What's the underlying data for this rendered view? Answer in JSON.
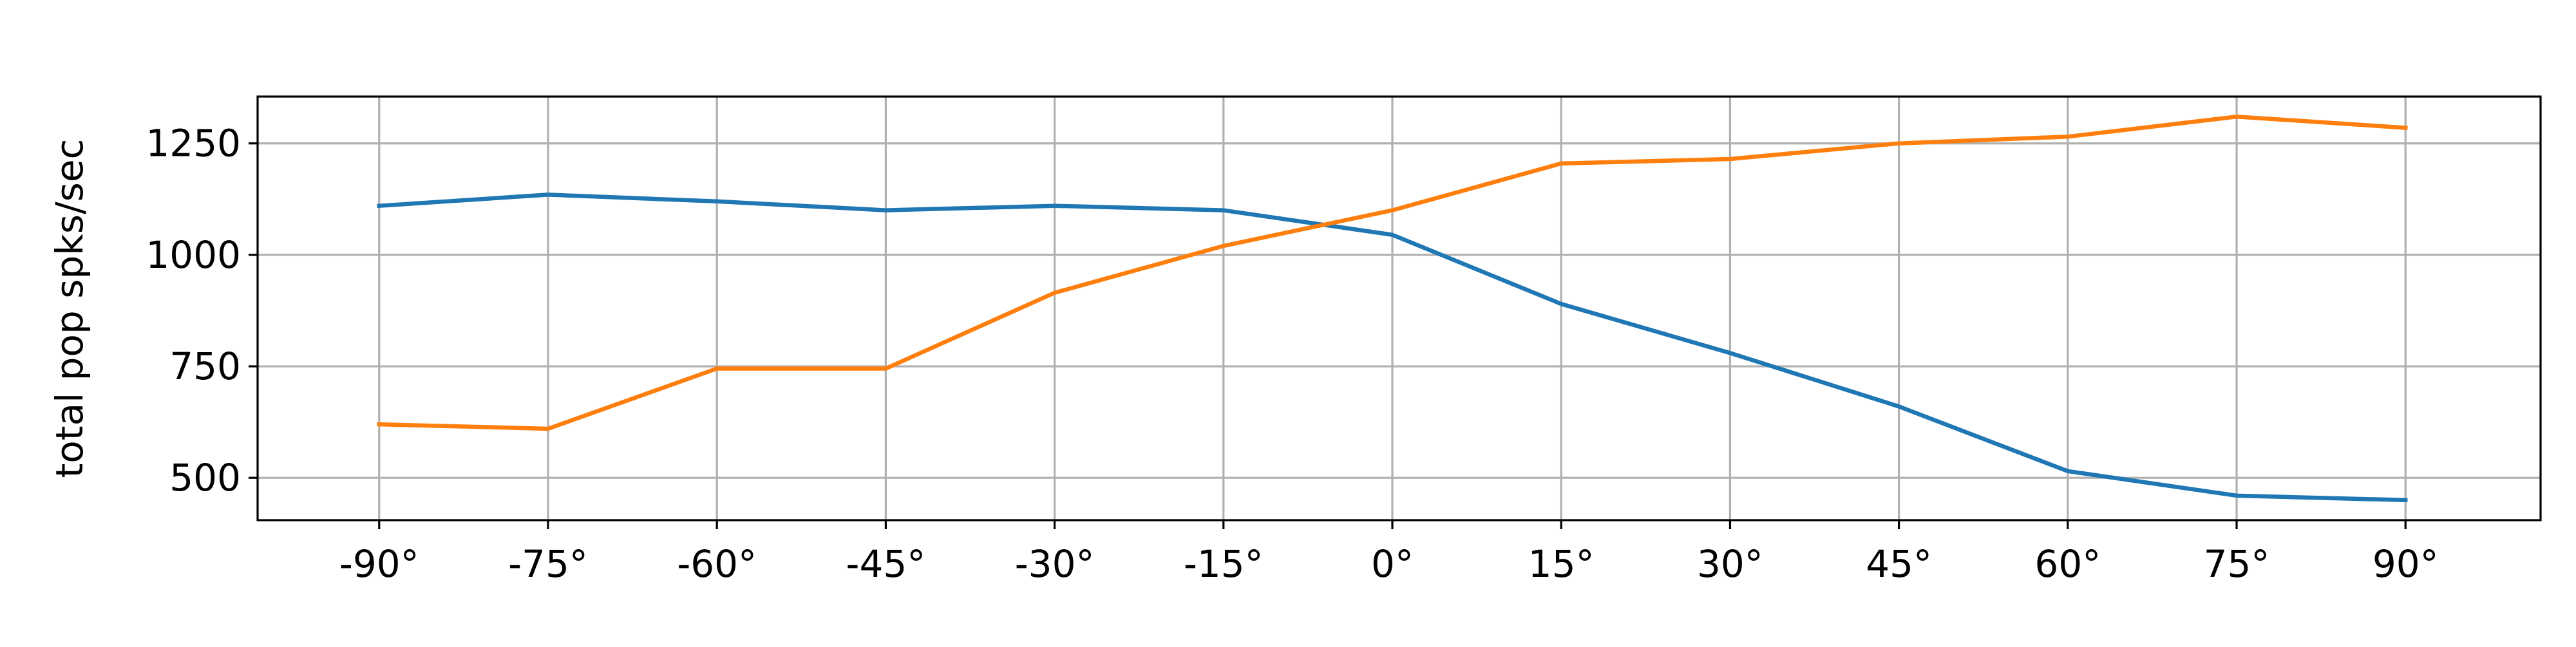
{
  "chart_data": {
    "type": "line",
    "x": [
      -90,
      -75,
      -60,
      -45,
      -30,
      -15,
      0,
      15,
      30,
      45,
      60,
      75,
      90
    ],
    "tick_labels": [
      "-90°",
      "-75°",
      "-60°",
      "-45°",
      "-30°",
      "-15°",
      "0°",
      "15°",
      "30°",
      "45°",
      "60°",
      "75°",
      "90°"
    ],
    "series": [
      {
        "color": "#1f77b4",
        "values": [
          1110,
          1135,
          1120,
          1100,
          1110,
          1100,
          1045,
          890,
          780,
          660,
          515,
          460,
          450
        ]
      },
      {
        "color": "#ff7f0e",
        "values": [
          620,
          610,
          745,
          745,
          915,
          1020,
          1100,
          1205,
          1215,
          1250,
          1265,
          1310,
          1285
        ]
      }
    ],
    "xlabel": "",
    "ylabel": "total pop spks/sec",
    "yticks": [
      500,
      750,
      1000,
      1250
    ],
    "xlim": [
      -100.8,
      102
    ],
    "ylim": [
      405,
      1355
    ],
    "grid": true
  }
}
